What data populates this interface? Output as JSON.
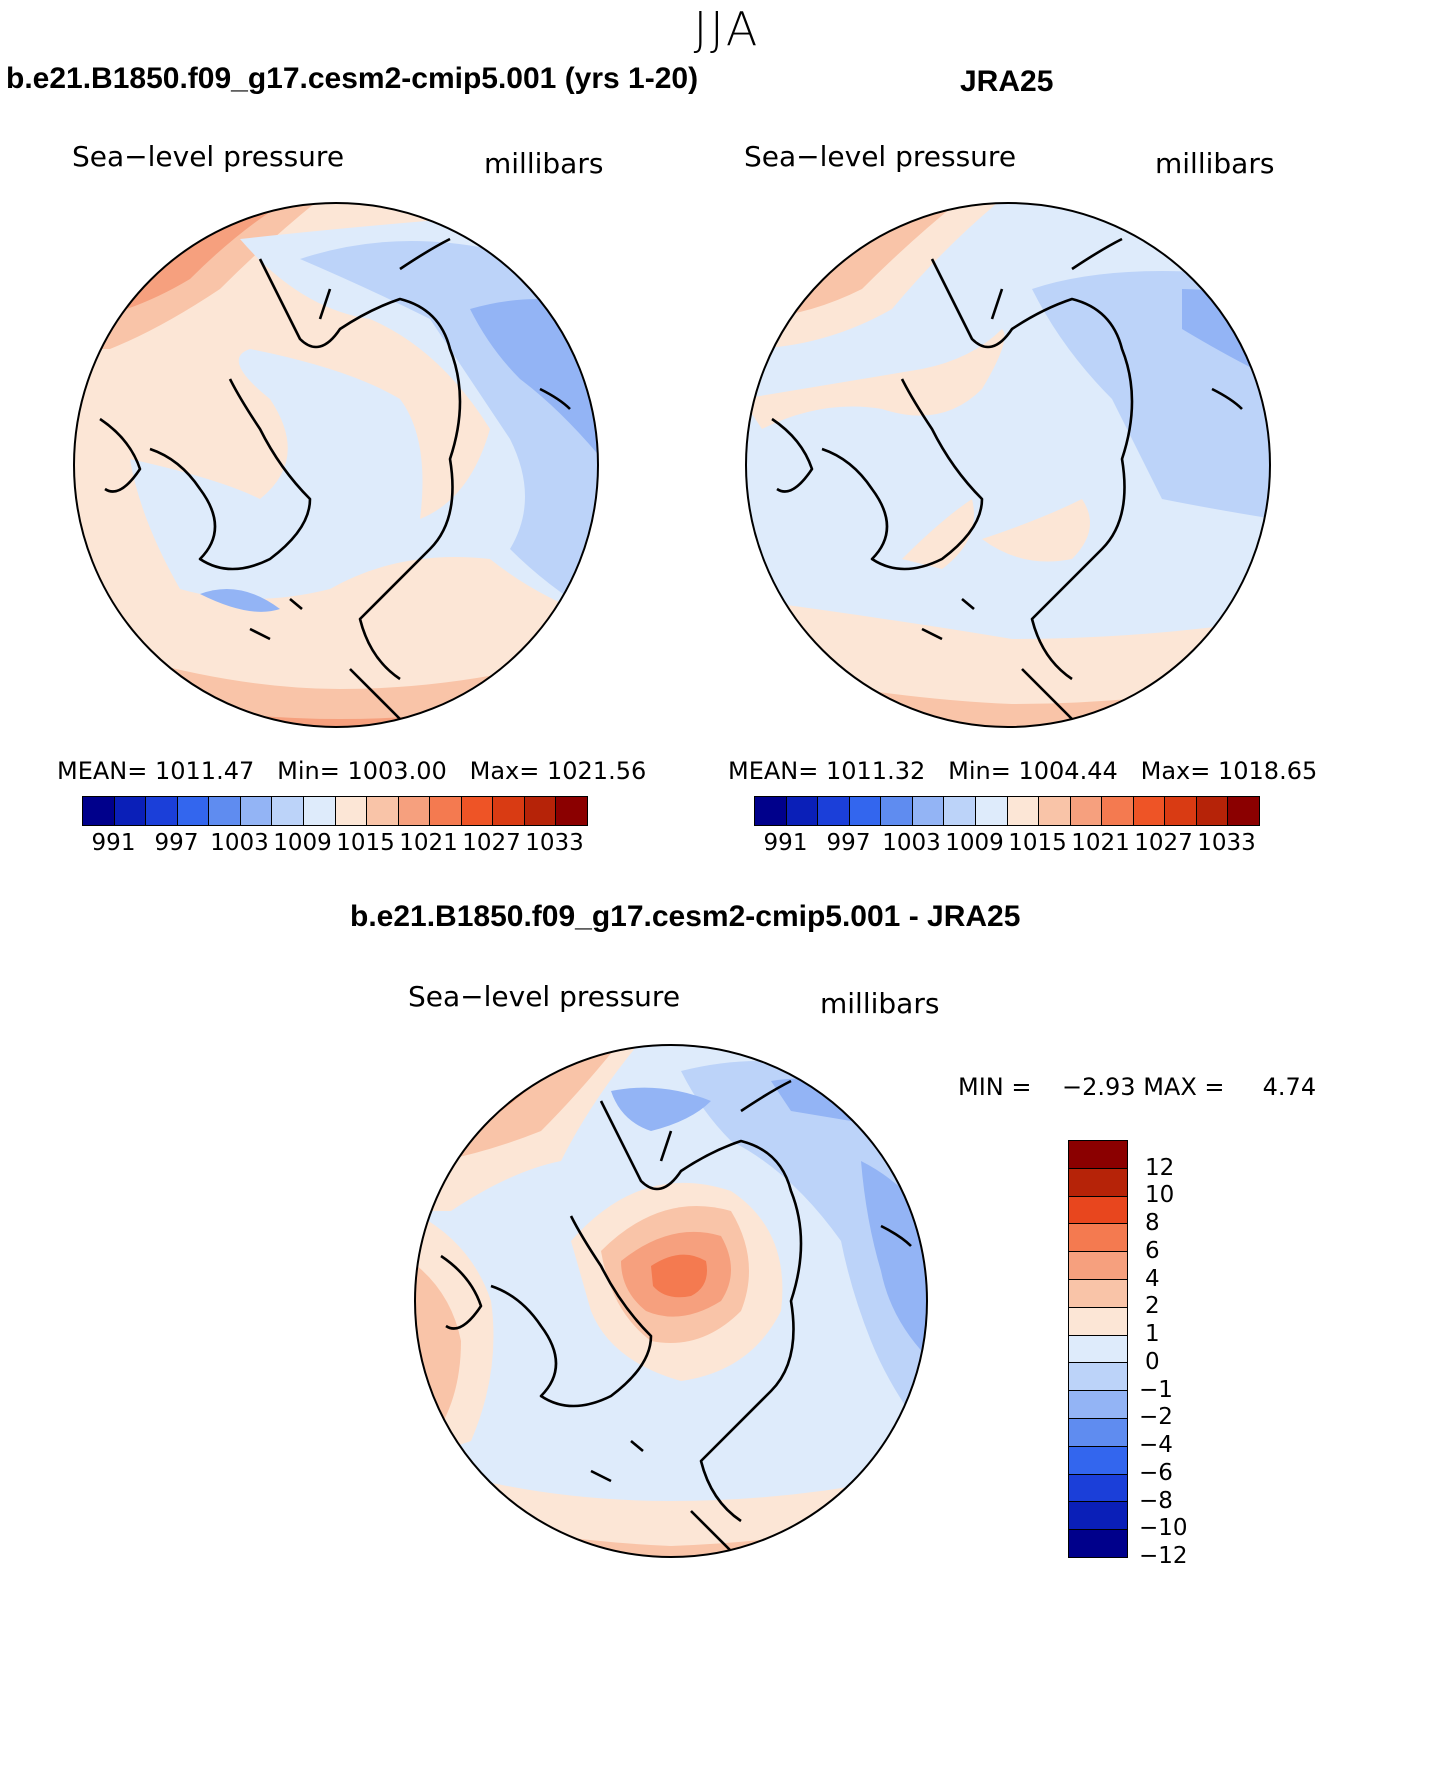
{
  "season": "JJA",
  "panels": [
    {
      "title": "b.e21.B1850.f09_g17.cesm2-cmip5.001 (yrs 1-20)",
      "variable": "Sea−level pressure",
      "units": "millibars",
      "stats": {
        "mean_label": "MEAN=",
        "mean": "1011.47",
        "min_label": "Min=",
        "min": "1003.00",
        "max_label": "Max=",
        "max": "1021.56"
      }
    },
    {
      "title": "JRA25",
      "variable": "Sea−level pressure",
      "units": "millibars",
      "stats": {
        "mean_label": "MEAN=",
        "mean": "1011.32",
        "min_label": "Min=",
        "min": "1004.44",
        "max_label": "Max=",
        "max": "1018.65"
      }
    }
  ],
  "diff_panel": {
    "title": "b.e21.B1850.f09_g17.cesm2-cmip5.001 - JRA25",
    "variable": "Sea−level pressure",
    "units": "millibars",
    "stats": {
      "min_label": "MIN =",
      "min": "−2.93",
      "max_label": "MAX =",
      "max": "4.74"
    }
  },
  "abs_colorbar": {
    "colors": [
      "#00008b",
      "#0a1fb8",
      "#1b3fd9",
      "#3366ee",
      "#5f8cf0",
      "#93b4f5",
      "#bcd3f9",
      "#deebfb",
      "#fce6d6",
      "#f9c4a8",
      "#f6a07e",
      "#f47a50",
      "#ee5426",
      "#d93b13",
      "#b62308",
      "#8b0000"
    ],
    "labels": [
      "991",
      "997",
      "1003",
      "1009",
      "1015",
      "1021",
      "1027",
      "1033"
    ]
  },
  "diff_colorbar": {
    "colors": [
      "#8b0000",
      "#b62308",
      "#e8461e",
      "#f47a50",
      "#f6a07e",
      "#f9c4a8",
      "#fce6d6",
      "#deebfb",
      "#bcd3f9",
      "#93b4f5",
      "#5f8cf0",
      "#3366ee",
      "#1b3fd9",
      "#0a1fb8",
      "#00008b"
    ],
    "labels": [
      "12",
      "10",
      "8",
      "6",
      "4",
      "2",
      "1",
      "0",
      "−1",
      "−2",
      "−4",
      "−6",
      "−8",
      "−10",
      "−12"
    ]
  }
}
